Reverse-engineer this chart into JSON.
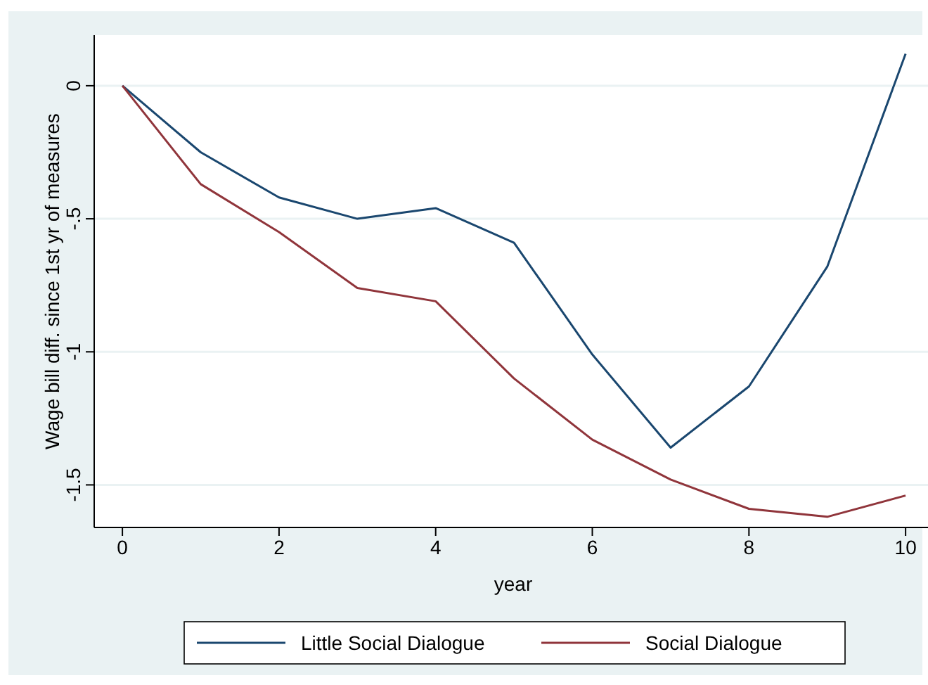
{
  "chart_data": {
    "type": "line",
    "xlabel": "year",
    "ylabel": "Wage bill diff. since 1st yr of measures",
    "x": [
      0,
      1,
      2,
      3,
      4,
      5,
      6,
      7,
      8,
      9,
      10
    ],
    "series": [
      {
        "name": "Little Social Dialogue",
        "color": "#1a476f",
        "values": [
          0,
          -0.25,
          -0.42,
          -0.5,
          -0.46,
          -0.59,
          -1.01,
          -1.36,
          -1.13,
          -0.68,
          0.12
        ]
      },
      {
        "name": "Social Dialogue",
        "color": "#90353b",
        "values": [
          0,
          -0.37,
          -0.55,
          -0.76,
          -0.81,
          -1.1,
          -1.33,
          -1.48,
          -1.59,
          -1.62,
          -1.54
        ]
      }
    ],
    "xlim": [
      -0.36,
      10.34
    ],
    "ylim": [
      -1.66,
      0.19
    ],
    "xticks": [
      0,
      2,
      4,
      6,
      8,
      10
    ],
    "yticks": [
      {
        "value": 0,
        "label": "0"
      },
      {
        "value": -0.5,
        "label": "-.5"
      },
      {
        "value": -1,
        "label": "-1"
      },
      {
        "value": -1.5,
        "label": "-1.5"
      }
    ],
    "grid": "y",
    "legend": "bottom",
    "marker": "none",
    "line_style": "solid"
  }
}
